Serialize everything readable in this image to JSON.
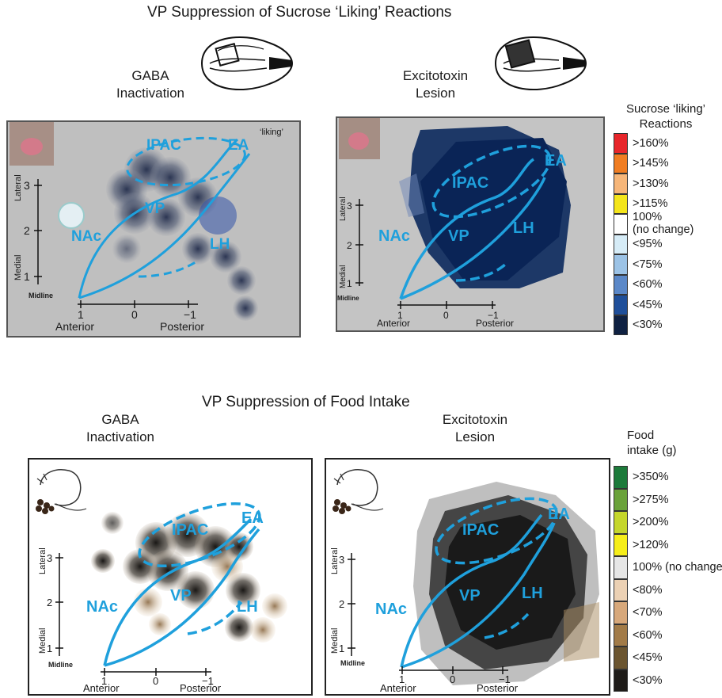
{
  "top": {
    "title": "VP Suppression of Sucrose ‘Liking’ Reactions",
    "left_condition": [
      "GABA",
      "Inactivation"
    ],
    "right_condition": [
      "Excitotoxin",
      "Lesion"
    ],
    "corner_tag": "‘liking’"
  },
  "bottom": {
    "title": "VP Suppression of Food Intake",
    "left_condition": [
      "GABA",
      "Inactivation"
    ],
    "right_condition": [
      "Excitotoxin",
      "Lesion"
    ]
  },
  "map_labels": {
    "ipac": "IPAC",
    "ea": "EA",
    "vp": "VP",
    "nac": "NAc",
    "lh": "LH"
  },
  "axes": {
    "lateral": "Lateral",
    "medial": "Medial",
    "midline": "Midline",
    "anterior": "Anterior",
    "posterior": "Posterior",
    "y_ticks": [
      "3",
      "2",
      "1"
    ],
    "x_ticks": [
      "1",
      "0",
      "−1"
    ]
  },
  "liking_legend": {
    "title": [
      "Sucrose ‘liking’",
      "Reactions"
    ],
    "items": [
      {
        "label": ">160%",
        "color": "#e8262b"
      },
      {
        "label": ">145%",
        "color": "#f07d22"
      },
      {
        "label": ">130%",
        "color": "#f6b679"
      },
      {
        "label": ">115%",
        "color": "#f4e51b"
      },
      {
        "label": "100%",
        "sub": "(no change)",
        "color": "#ffffff"
      },
      {
        "label": "<95%",
        "color": "#d6ecf7"
      },
      {
        "label": "<75%",
        "color": "#9cc3e6"
      },
      {
        "label": "<60%",
        "color": "#5b88c8"
      },
      {
        "label": "<45%",
        "color": "#1f4f9a"
      },
      {
        "label": "<30%",
        "color": "#0f2142"
      }
    ]
  },
  "intake_legend": {
    "title": [
      "Food",
      "intake (g)"
    ],
    "items": [
      {
        "label": ">350%",
        "color": "#1c7a3a"
      },
      {
        "label": ">275%",
        "color": "#6aa23a"
      },
      {
        "label": ">200%",
        "color": "#c5d62c"
      },
      {
        "label": ">120%",
        "color": "#f6ee1a"
      },
      {
        "label": "100% (no change)",
        "color": "#e6e6e6"
      },
      {
        "label": "<80%",
        "color": "#ecd1b4"
      },
      {
        "label": "<70%",
        "color": "#d7a87b"
      },
      {
        "label": "<60%",
        "color": "#a27b48"
      },
      {
        "label": "<45%",
        "color": "#6b5530"
      },
      {
        "label": "<30%",
        "color": "#1e1b18"
      }
    ]
  }
}
